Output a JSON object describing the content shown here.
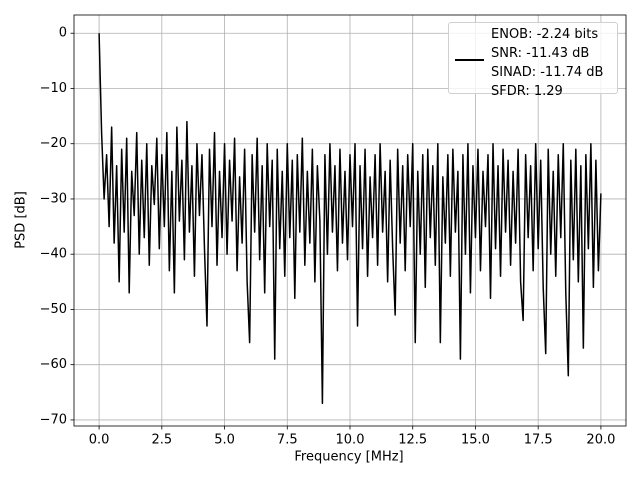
{
  "chart_data": {
    "type": "line",
    "xlabel": "Frequency [MHz]",
    "ylabel": "PSD [dB]",
    "xlim": [
      -1.0,
      21.0
    ],
    "ylim": [
      -71.1,
      3.3
    ],
    "xticks": [
      {
        "value": 0,
        "label": "0.0"
      },
      2.5,
      {
        "value": 5,
        "label": "5.0"
      },
      7.5,
      {
        "value": 10,
        "label": "10.0"
      },
      12.5,
      {
        "value": 15,
        "label": "15.0"
      },
      17.5,
      {
        "value": 20,
        "label": "20.0"
      }
    ],
    "yticks": [
      0,
      {
        "value": -10,
        "label": "−10"
      },
      {
        "value": -20,
        "label": "−20"
      },
      {
        "value": -30,
        "label": "−30"
      },
      {
        "value": -40,
        "label": "−40"
      },
      {
        "value": -50,
        "label": "−50"
      },
      {
        "value": -60,
        "label": "−60"
      },
      {
        "value": -70,
        "label": "−70"
      }
    ],
    "grid": true,
    "legend": "upper right",
    "x": [
      0,
      0.1,
      0.2,
      0.3,
      0.4,
      0.5,
      0.6,
      0.7,
      0.8,
      0.9,
      1,
      1.1,
      1.2,
      1.3,
      1.4,
      1.5,
      1.6,
      1.7,
      1.8,
      1.9,
      2,
      2.1,
      2.2,
      2.3,
      2.4,
      2.5,
      2.6,
      2.7,
      2.8,
      2.9,
      3,
      3.1,
      3.2,
      3.3,
      3.4,
      3.5,
      3.6,
      3.7,
      3.8,
      3.9,
      4,
      4.1,
      4.2,
      4.3,
      4.4,
      4.5,
      4.6,
      4.7,
      4.8,
      4.9,
      5,
      5.1,
      5.2,
      5.3,
      5.4,
      5.5,
      5.6,
      5.7,
      5.8,
      5.9,
      6,
      6.1,
      6.2,
      6.3,
      6.4,
      6.5,
      6.6,
      6.7,
      6.8,
      6.9,
      7,
      7.1,
      7.2,
      7.3,
      7.4,
      7.5,
      7.6,
      7.7,
      7.8,
      7.9,
      8,
      8.1,
      8.2,
      8.3,
      8.4,
      8.5,
      8.6,
      8.7,
      8.8,
      8.9,
      9,
      9.1,
      9.2,
      9.3,
      9.4,
      9.5,
      9.6,
      9.7,
      9.8,
      9.9,
      10,
      10.1,
      10.2,
      10.3,
      10.4,
      10.5,
      10.6,
      10.7,
      10.8,
      10.9,
      11,
      11.1,
      11.2,
      11.3,
      11.4,
      11.5,
      11.6,
      11.7,
      11.8,
      11.9,
      12,
      12.1,
      12.2,
      12.3,
      12.4,
      12.5,
      12.6,
      12.7,
      12.8,
      12.9,
      13,
      13.1,
      13.2,
      13.3,
      13.4,
      13.5,
      13.6,
      13.7,
      13.8,
      13.9,
      14,
      14.1,
      14.2,
      14.3,
      14.4,
      14.5,
      14.6,
      14.7,
      14.8,
      14.9,
      15,
      15.1,
      15.2,
      15.3,
      15.4,
      15.5,
      15.6,
      15.7,
      15.8,
      15.9,
      16,
      16.1,
      16.2,
      16.3,
      16.4,
      16.5,
      16.6,
      16.7,
      16.8,
      16.9,
      17,
      17.1,
      17.2,
      17.3,
      17.4,
      17.5,
      17.6,
      17.7,
      17.8,
      17.9,
      18,
      18.1,
      18.2,
      18.3,
      18.4,
      18.5,
      18.6,
      18.7,
      18.8,
      18.9,
      19,
      19.1,
      19.2,
      19.3,
      19.4,
      19.5,
      19.6,
      19.7,
      19.8,
      19.9,
      20
    ],
    "series": [
      {
        "name": "ENOB: -2.24 bits\nSNR: -11.43 dB\nSINAD: -11.74 dB\nSFDR: 1.29",
        "color": "#000000",
        "values": [
          0,
          -18,
          -30,
          -22,
          -35,
          -17,
          -38,
          -24,
          -45,
          -21,
          -36,
          -19,
          -47,
          -25,
          -33,
          -18,
          -40,
          -23,
          -37,
          -20,
          -42,
          -24,
          -31,
          -19,
          -39,
          -22,
          -35,
          -18,
          -43,
          -25,
          -47,
          -17,
          -34,
          -23,
          -41,
          -16,
          -36,
          -24,
          -44,
          -20,
          -33,
          -22,
          -39,
          -53,
          -21,
          -35,
          -18,
          -42,
          -25,
          -37,
          -20,
          -40,
          -23,
          -34,
          -19,
          -43,
          -26,
          -38,
          -21,
          -45,
          -56,
          -22,
          -36,
          -19,
          -41,
          -24,
          -47,
          -20,
          -35,
          -23,
          -59,
          -21,
          -39,
          -25,
          -44,
          -20,
          -37,
          -23,
          -48,
          -22,
          -36,
          -19,
          -42,
          -25,
          -38,
          -21,
          -45,
          -24,
          -34,
          -67,
          -22,
          -40,
          -20,
          -36,
          -24,
          -43,
          -21,
          -38,
          -25,
          -41,
          -22,
          -35,
          -20,
          -53,
          -24,
          -39,
          -21,
          -44,
          -26,
          -37,
          -22,
          -42,
          -20,
          -36,
          -25,
          -45,
          -23,
          -39,
          -51,
          -21,
          -38,
          -24,
          -43,
          -22,
          -35,
          -20,
          -56,
          -25,
          -40,
          -22,
          -46,
          -21,
          -37,
          -24,
          -42,
          -20,
          -56,
          -26,
          -38,
          -22,
          -44,
          -21,
          -36,
          -25,
          -59,
          -22,
          -40,
          -20,
          -47,
          -24,
          -37,
          -21,
          -43,
          -25,
          -35,
          -22,
          -48,
          -20,
          -39,
          -24,
          -44,
          -21,
          -36,
          -23,
          -42,
          -25,
          -38,
          -21,
          -45,
          -52,
          -22,
          -37,
          -24,
          -43,
          -20,
          -39,
          -23,
          -46,
          -58,
          -21,
          -40,
          -25,
          -44,
          -22,
          -37,
          -20,
          -47,
          -62,
          -23,
          -41,
          -21,
          -45,
          -24,
          -57,
          -22,
          -39,
          -20,
          -46,
          -23,
          -43,
          -29
        ]
      }
    ]
  }
}
